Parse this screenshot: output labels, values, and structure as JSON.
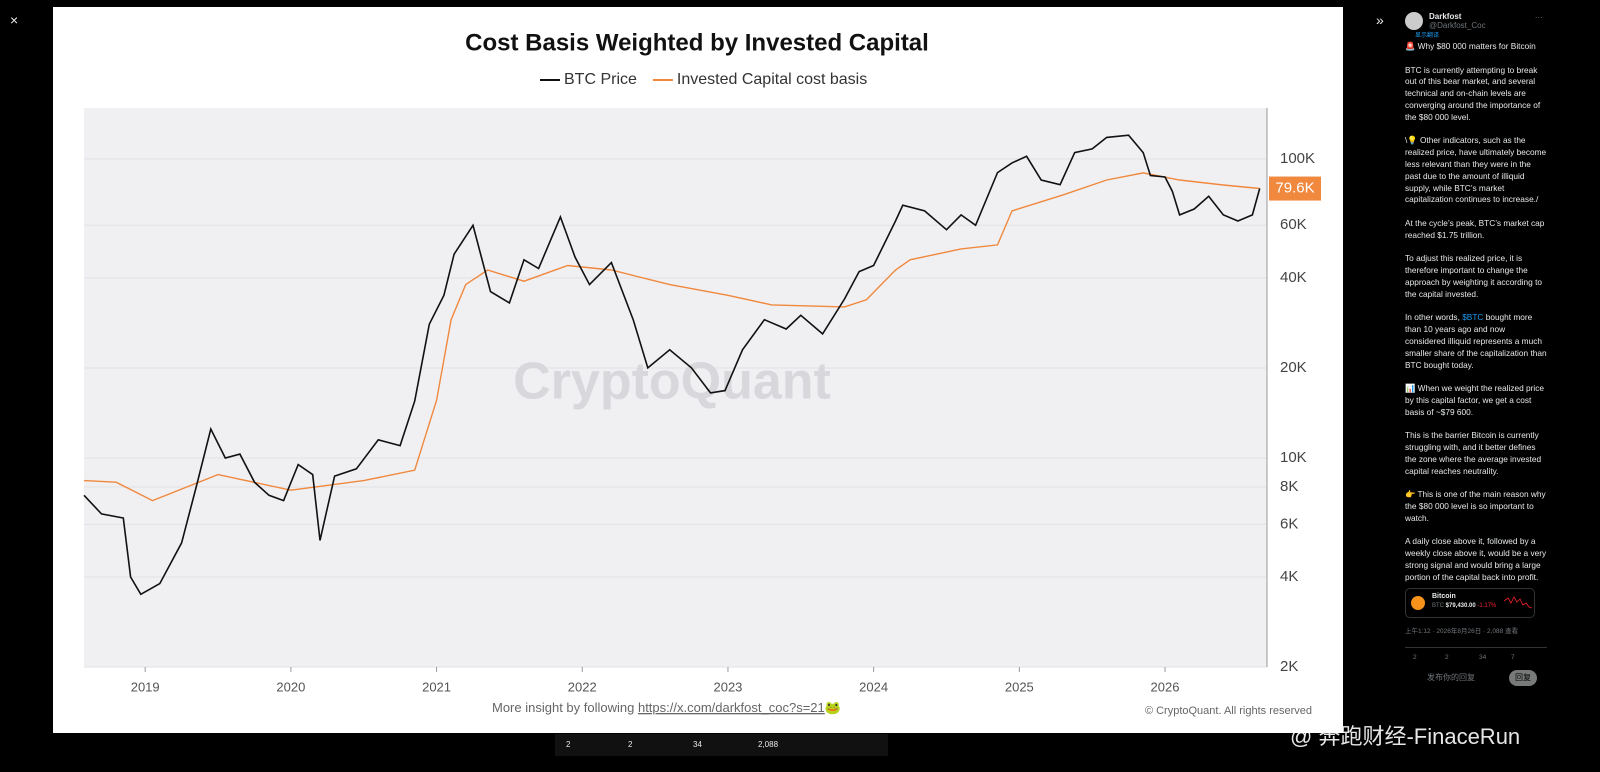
{
  "viewer": {
    "close": "×",
    "collapse": "»"
  },
  "chart_data": {
    "type": "line",
    "title": "Cost Basis Weighted by Invested Capital",
    "log_y": true,
    "grid": true,
    "plot_background": "#f0f0f2",
    "watermark": "CryptoQuant",
    "footer_text": "More insight by following ",
    "footer_link": "https://x.com/darkfost_coc?s=21",
    "footer_emoji": "🐸",
    "copyright": "© CryptoQuant. All rights reserved",
    "last_label": "79.6K",
    "last_label_color": "#f0883e",
    "xlim": [
      2018.58,
      2026.7
    ],
    "xticks": [
      2019,
      2020,
      2021,
      2022,
      2023,
      2024,
      2025,
      2026
    ],
    "ylim": [
      2000,
      148000
    ],
    "yticks": [
      {
        "value": 2000,
        "label": "2K"
      },
      {
        "value": 4000,
        "label": "4K"
      },
      {
        "value": 6000,
        "label": "6K"
      },
      {
        "value": 8000,
        "label": "8K"
      },
      {
        "value": 10000,
        "label": "10K"
      },
      {
        "value": 20000,
        "label": "20K"
      },
      {
        "value": 40000,
        "label": "40K"
      },
      {
        "value": 60000,
        "label": "60K"
      },
      {
        "value": 100000,
        "label": "100K"
      }
    ],
    "series": [
      {
        "name": "BTC Price",
        "color": "#111111",
        "x": [
          2018.58,
          2018.7,
          2018.85,
          2018.9,
          2018.97,
          2019.1,
          2019.25,
          2019.35,
          2019.45,
          2019.55,
          2019.65,
          2019.75,
          2019.85,
          2019.95,
          2020.05,
          2020.15,
          2020.2,
          2020.3,
          2020.45,
          2020.6,
          2020.75,
          2020.85,
          2020.95,
          2021.05,
          2021.12,
          2021.25,
          2021.37,
          2021.5,
          2021.6,
          2021.7,
          2021.85,
          2021.95,
          2022.05,
          2022.2,
          2022.35,
          2022.45,
          2022.6,
          2022.75,
          2022.88,
          2022.98,
          2023.1,
          2023.25,
          2023.4,
          2023.5,
          2023.65,
          2023.8,
          2023.9,
          2024.0,
          2024.15,
          2024.2,
          2024.35,
          2024.5,
          2024.6,
          2024.7,
          2024.85,
          2024.95,
          2025.05,
          2025.15,
          2025.28,
          2025.38,
          2025.5,
          2025.6,
          2025.75,
          2025.85,
          2025.9,
          2026.0,
          2026.05,
          2026.1,
          2026.2,
          2026.3,
          2026.4,
          2026.5,
          2026.6,
          2026.65
        ],
        "values": [
          7500,
          6500,
          6300,
          4000,
          3500,
          3800,
          5200,
          8000,
          12500,
          10000,
          10300,
          8300,
          7500,
          7200,
          9500,
          8800,
          5300,
          8700,
          9200,
          11500,
          11000,
          15500,
          28000,
          35000,
          48000,
          60000,
          36000,
          33000,
          46000,
          43000,
          64000,
          47000,
          38000,
          45000,
          29000,
          20000,
          23000,
          20000,
          16500,
          16800,
          23000,
          29000,
          27000,
          30000,
          26000,
          34000,
          42000,
          44000,
          62000,
          70000,
          67000,
          58000,
          65000,
          60000,
          90000,
          97000,
          102000,
          85000,
          82000,
          105000,
          108000,
          118000,
          120000,
          105000,
          88000,
          87000,
          78000,
          65000,
          68000,
          75000,
          65000,
          62000,
          65000,
          79600
        ]
      },
      {
        "name": "Invested Capital cost basis",
        "color": "#f0883e",
        "x": [
          2018.58,
          2018.8,
          2019.05,
          2019.5,
          2020.0,
          2020.5,
          2020.85,
          2021.0,
          2021.1,
          2021.2,
          2021.35,
          2021.6,
          2021.9,
          2022.2,
          2022.6,
          2023.0,
          2023.3,
          2023.8,
          2023.95,
          2024.15,
          2024.25,
          2024.6,
          2024.85,
          2024.95,
          2025.3,
          2025.6,
          2025.85,
          2026.1,
          2026.4,
          2026.65
        ],
        "values": [
          8400,
          8300,
          7200,
          8800,
          7800,
          8400,
          9100,
          15600,
          29000,
          38000,
          42500,
          39000,
          44000,
          42500,
          38000,
          35000,
          32500,
          32000,
          33800,
          42500,
          46000,
          50000,
          51600,
          67000,
          75800,
          85000,
          89800,
          85000,
          81800,
          79600
        ]
      }
    ]
  },
  "post_stats": {
    "replies": "2",
    "reposts": "2",
    "likes": "34",
    "views": "2,088"
  },
  "tweet": {
    "author": "Darkfost",
    "handle": "@Darkfost_Coc",
    "more": "···",
    "translate": "显示翻译",
    "p1": "🚨 Why $80 000 matters for Bitcoin",
    "p2": "BTC is currently attempting to break out of this bear market, and several technical and on-chain levels are converging around the importance of the $80 000 level.",
    "p3": "\\💡 Other indicators, such as the realized price, have ultimately become less relevant than they were in the past due to the amount of illiquid supply, while BTC’s market capitalization continues to increase./",
    "p4": "At the cycle’s peak, BTC’s market cap reached $1.75 trillion.",
    "p5": "To adjust this realized price, it is therefore important to change the approach by weighting it according to the capital invested.",
    "p6a": "In other words, ",
    "p6b": "$BTC",
    "p6c": " bought more than 10 years ago and now considered illiquid represents a much smaller share of the capitalization than BTC bought today.",
    "p7": "📊 When we weight the realized price by this capital factor, we get a cost basis of ~$79 600.",
    "p8": "This is the barrier Bitcoin is currently struggling with, and it better defines the zone where the average invested capital reaches neutrality.",
    "p9": "👉 This is one of the main reason why the $80 000 level is so important to watch.",
    "p10": "A daily close above it, followed by a weekly close above it, would be a very strong signal and would bring a large portion of the capital back into profit.",
    "card_name": "Bitcoin",
    "card_ticker": "BTC",
    "card_price": "$79,430.00",
    "card_change": "-1.17%",
    "time": "上午1:12 · 2026年8月26日 · 2,088 查看",
    "actions": {
      "replies": "2",
      "reposts": "2",
      "likes": "34",
      "bookmarks": "7"
    },
    "reply_placeholder": "发布你的回复",
    "reply_button": "回复"
  },
  "watermark": "@ 奔跑财经-FinaceRun"
}
